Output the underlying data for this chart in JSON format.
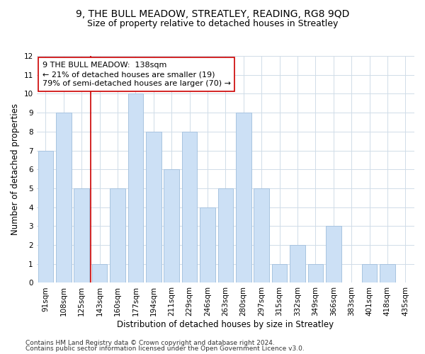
{
  "title": "9, THE BULL MEADOW, STREATLEY, READING, RG8 9QD",
  "subtitle": "Size of property relative to detached houses in Streatley",
  "xlabel": "Distribution of detached houses by size in Streatley",
  "ylabel": "Number of detached properties",
  "categories": [
    "91sqm",
    "108sqm",
    "125sqm",
    "143sqm",
    "160sqm",
    "177sqm",
    "194sqm",
    "211sqm",
    "229sqm",
    "246sqm",
    "263sqm",
    "280sqm",
    "297sqm",
    "315sqm",
    "332sqm",
    "349sqm",
    "366sqm",
    "383sqm",
    "401sqm",
    "418sqm",
    "435sqm"
  ],
  "values": [
    7,
    9,
    5,
    1,
    5,
    10,
    8,
    6,
    8,
    4,
    5,
    9,
    5,
    1,
    2,
    1,
    3,
    0,
    1,
    1,
    0
  ],
  "bar_color": "#cce0f5",
  "bar_edge_color": "#a8c4e0",
  "ylim": [
    0,
    12
  ],
  "yticks": [
    0,
    1,
    2,
    3,
    4,
    5,
    6,
    7,
    8,
    9,
    10,
    11,
    12
  ],
  "marker_index": 3,
  "marker_line_color": "#cc0000",
  "marker_box_color": "#ffffff",
  "marker_box_edge": "#cc0000",
  "annotation_line1": "9 THE BULL MEADOW:  138sqm",
  "annotation_line2": "← 21% of detached houses are smaller (19)",
  "annotation_line3": "79% of semi-detached houses are larger (70) →",
  "footer1": "Contains HM Land Registry data © Crown copyright and database right 2024.",
  "footer2": "Contains public sector information licensed under the Open Government Licence v3.0.",
  "bg_color": "#ffffff",
  "grid_color": "#d0dce8",
  "title_fontsize": 10,
  "subtitle_fontsize": 9,
  "axis_label_fontsize": 8.5,
  "tick_fontsize": 7.5,
  "annot_fontsize": 8,
  "footer_fontsize": 6.5
}
